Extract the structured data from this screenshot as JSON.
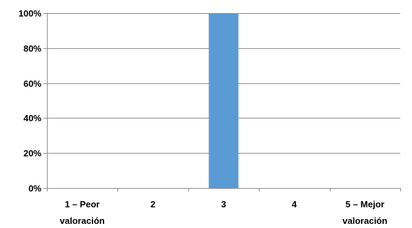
{
  "chart_data": {
    "type": "bar",
    "categories": [
      [
        "1 – Peor",
        "valoración"
      ],
      [
        "2"
      ],
      [
        "3"
      ],
      [
        "4"
      ],
      [
        "5 – Mejor",
        "valoración"
      ]
    ],
    "values": [
      0,
      0,
      100,
      0,
      0
    ],
    "ylim": [
      0,
      100
    ],
    "yticks": [
      0,
      20,
      40,
      60,
      80,
      100
    ],
    "ytick_labels": [
      "0%",
      "20%",
      "40%",
      "60%",
      "80%",
      "100%"
    ],
    "grid": true,
    "legend": "none",
    "bar_color": "#5B9BD5",
    "grid_color": "#8C8C8C",
    "axis_color": "#8C8C8C"
  }
}
